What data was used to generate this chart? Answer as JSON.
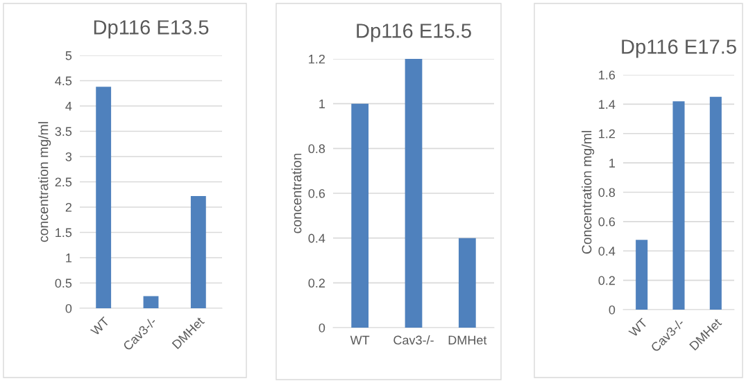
{
  "chart_data": [
    {
      "type": "bar",
      "title": "Dp116 E13.5",
      "ylabel": "concentration mg/ml",
      "categories": [
        "WT",
        "Cav3-/-",
        "DMHet"
      ],
      "values": [
        4.38,
        0.24,
        2.22
      ],
      "color": "#4f81bd",
      "ylim": [
        0,
        5
      ],
      "yticks": [
        0,
        0.5,
        1,
        1.5,
        2,
        2.5,
        3,
        3.5,
        4,
        4.5,
        5
      ],
      "grid": "y"
    },
    {
      "type": "bar",
      "title": "Dp116 E15.5",
      "ylabel": "concentration",
      "categories": [
        "WT",
        "Cav3-/-",
        "DMHet"
      ],
      "values": [
        1.0,
        1.2,
        0.4
      ],
      "color": "#4f81bd",
      "ylim": [
        0,
        1.2
      ],
      "yticks": [
        0,
        0.2,
        0.4,
        0.6,
        0.8,
        1,
        1.2
      ],
      "grid": "y"
    },
    {
      "type": "bar",
      "title": "Dp116 E17.5",
      "ylabel": "Concentration mg/ml",
      "categories": [
        "WT",
        "Cav3-/-",
        "DMHet"
      ],
      "values": [
        0.475,
        1.42,
        1.45
      ],
      "color": "#4f81bd",
      "ylim": [
        0,
        1.6
      ],
      "yticks": [
        0,
        0.2,
        0.4,
        0.6,
        0.8,
        1,
        1.2,
        1.4,
        1.6
      ],
      "grid": "y"
    }
  ]
}
